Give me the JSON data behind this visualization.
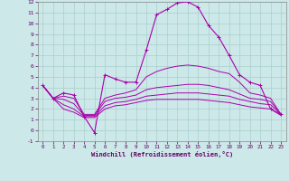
{
  "xlabel": "Windchill (Refroidissement éolien,°C)",
  "background_color": "#cce8e8",
  "grid_color": "#aacfcf",
  "line_color": "#aa00aa",
  "xlim": [
    -0.5,
    23.5
  ],
  "ylim": [
    -1,
    12
  ],
  "xticks": [
    0,
    1,
    2,
    3,
    4,
    5,
    6,
    7,
    8,
    9,
    10,
    11,
    12,
    13,
    14,
    15,
    16,
    17,
    18,
    19,
    20,
    21,
    22,
    23
  ],
  "yticks": [
    -1,
    0,
    1,
    2,
    3,
    4,
    5,
    6,
    7,
    8,
    9,
    10,
    11,
    12
  ],
  "series": {
    "main": [
      4.2,
      3.0,
      3.5,
      3.3,
      1.3,
      -0.2,
      5.2,
      4.8,
      4.5,
      4.5,
      7.5,
      10.8,
      11.3,
      11.9,
      12.0,
      11.5,
      9.8,
      8.7,
      7.0,
      5.2,
      4.5,
      4.2,
      2.0,
      1.5
    ],
    "line2": [
      4.2,
      3.0,
      3.2,
      3.0,
      1.5,
      1.5,
      3.0,
      3.3,
      3.5,
      3.8,
      5.0,
      5.5,
      5.8,
      6.0,
      6.1,
      6.0,
      5.8,
      5.5,
      5.3,
      4.5,
      3.5,
      3.3,
      3.0,
      1.5
    ],
    "line3": [
      4.2,
      3.0,
      2.9,
      2.5,
      1.4,
      1.4,
      2.7,
      3.0,
      3.1,
      3.3,
      3.8,
      4.0,
      4.1,
      4.2,
      4.3,
      4.3,
      4.2,
      4.0,
      3.8,
      3.4,
      3.0,
      2.9,
      2.7,
      1.5
    ],
    "line4": [
      4.2,
      3.0,
      2.4,
      2.0,
      1.3,
      1.3,
      2.3,
      2.6,
      2.7,
      2.9,
      3.2,
      3.3,
      3.4,
      3.5,
      3.5,
      3.5,
      3.4,
      3.3,
      3.2,
      2.9,
      2.7,
      2.5,
      2.4,
      1.5
    ],
    "line5": [
      4.2,
      3.0,
      2.0,
      1.7,
      1.2,
      1.2,
      2.0,
      2.3,
      2.4,
      2.6,
      2.8,
      2.9,
      2.9,
      2.9,
      2.9,
      2.9,
      2.8,
      2.7,
      2.6,
      2.4,
      2.2,
      2.1,
      2.0,
      1.4
    ]
  }
}
